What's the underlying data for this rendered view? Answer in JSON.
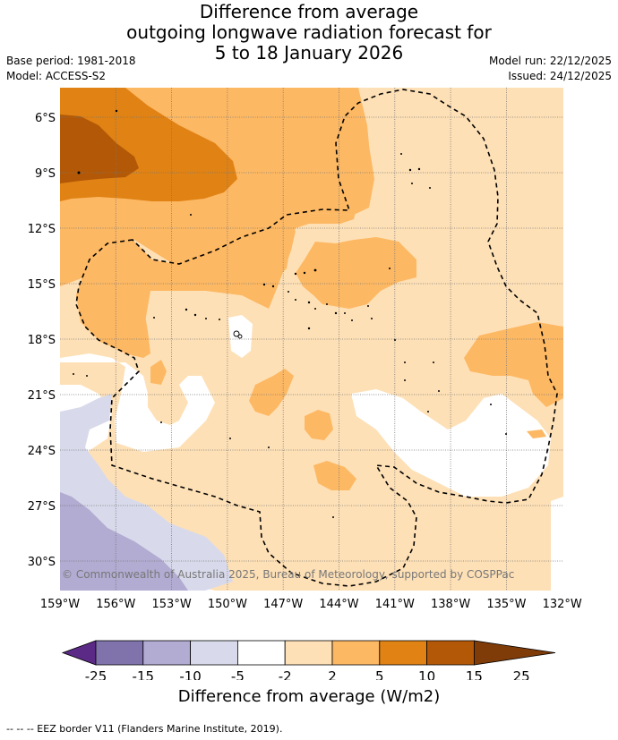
{
  "title": {
    "line1": "Difference from average",
    "line2": "outgoing longwave radiation forecast for",
    "line3": "5 to 18 January 2026"
  },
  "meta": {
    "base_period": "Base period: 1981-2018",
    "model": "Model: ACCESS-S2",
    "model_run": "Model run: 22/12/2025",
    "issued": "Issued: 24/12/2025"
  },
  "map": {
    "lat_labels": [
      "6°S",
      "9°S",
      "12°S",
      "15°S",
      "18°S",
      "21°S",
      "24°S",
      "27°S",
      "30°S"
    ],
    "lon_labels": [
      "159°W",
      "156°W",
      "153°W",
      "150°W",
      "147°W",
      "144°W",
      "141°W",
      "138°W",
      "135°W",
      "132°W"
    ],
    "copyright": "© Commonwealth of Australia 2025, Bureau of Meteorology, supported by COSPPac"
  },
  "colorbar": {
    "ticks": [
      "-25",
      "-15",
      "-10",
      "-5",
      "-2",
      "2",
      "5",
      "10",
      "15",
      "25"
    ],
    "colors": [
      "#5b2a86",
      "#8073ac",
      "#b2abd2",
      "#d8daeb",
      "#ffffff",
      "#fee0b6",
      "#fdb863",
      "#e08214",
      "#b35806",
      "#7f3b08"
    ],
    "title": "Difference from average (W/m2)"
  },
  "footer": "--  --  -- EEZ border V11 (Flanders Marine Institute, 2019)."
}
